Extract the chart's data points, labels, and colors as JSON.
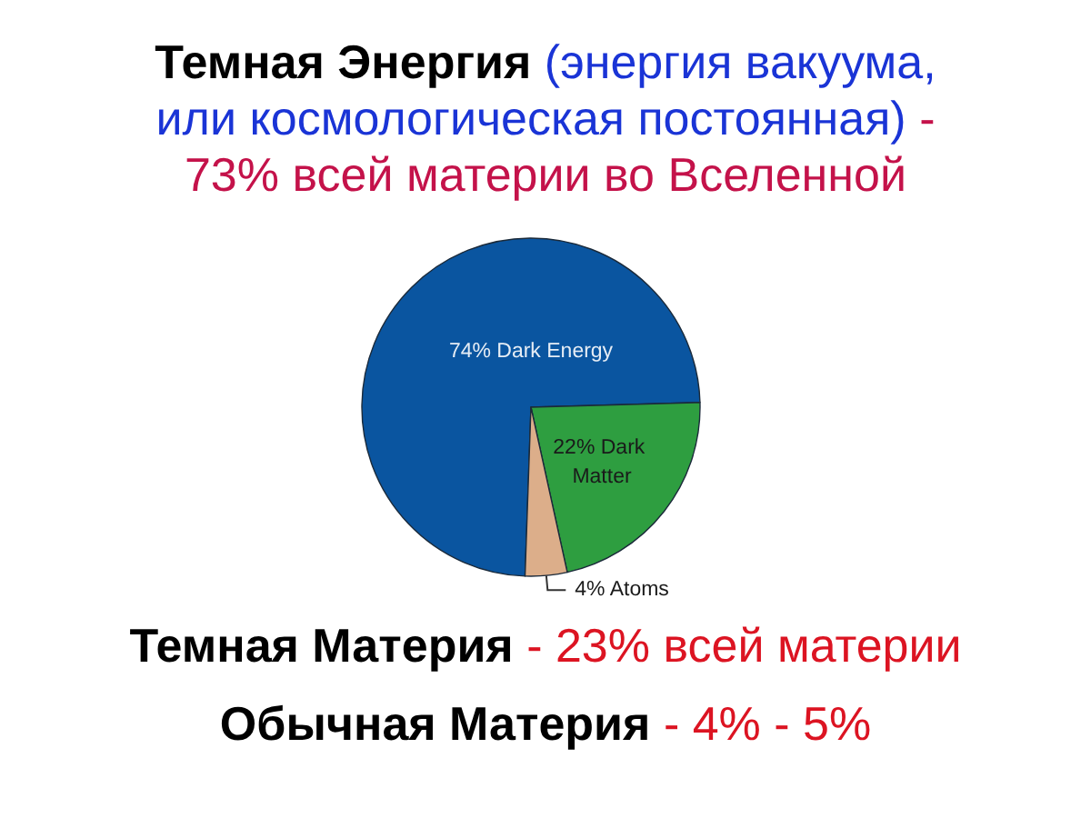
{
  "chart_data": {
    "type": "pie",
    "title": "Темная Энергия (энергия вакуума, или космологическая постоянная) - 73% всей материи во Вселенной",
    "categories": [
      "Dark Energy",
      "Dark Matter",
      "Atoms"
    ],
    "values": [
      74,
      22,
      4
    ],
    "value_labels": [
      "74%",
      "22%",
      "4%"
    ],
    "colors": [
      "#0a55a0",
      "#2e9e40",
      "#dcae8a"
    ],
    "annotations": [
      "Темная Материя - 23% всей материи",
      "Обычная Материя - 4% - 5%"
    ]
  }
}
